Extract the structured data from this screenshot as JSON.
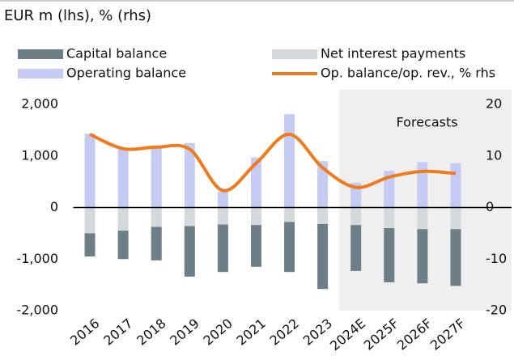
{
  "chart_data": {
    "type": "bar",
    "title": "EUR m (lhs), % (rhs)",
    "annotation": "Forecasts",
    "categories": [
      "2016",
      "2017",
      "2018",
      "2019",
      "2020",
      "2021",
      "2022",
      "2023",
      "2024E",
      "2025F",
      "2026F",
      "2027F"
    ],
    "series": [
      {
        "name": "Net interest payments",
        "color": "#d4d9db",
        "values": [
          -500,
          -450,
          -375,
          -360,
          -330,
          -340,
          -280,
          -320,
          -340,
          -400,
          -420,
          -420
        ]
      },
      {
        "name": "Capital balance",
        "color": "#6d7e86",
        "values": [
          -450,
          -550,
          -650,
          -980,
          -920,
          -810,
          -970,
          -1260,
          -890,
          -1050,
          -1050,
          -1100
        ]
      },
      {
        "name": "Operating balance",
        "color": "#c6cbf3",
        "values": [
          1430,
          1125,
          1200,
          1250,
          310,
          970,
          1810,
          900,
          480,
          710,
          880,
          860
        ]
      },
      {
        "name": "Op. balance/op. rev., % rhs",
        "color": "#f07a1e",
        "type": "line",
        "axis": "y2",
        "values": [
          14.2,
          11.4,
          11.7,
          11.3,
          3.3,
          8.6,
          14.2,
          7.7,
          3.9,
          5.9,
          7.0,
          6.6
        ]
      }
    ],
    "ylim": [
      -2000,
      2000
    ],
    "yticks": [
      {
        "value": -2000,
        "label": "-2,000"
      },
      {
        "value": -1000,
        "label": "-1,000"
      },
      0,
      {
        "value": 1000,
        "label": "1,000"
      },
      {
        "value": 2000,
        "label": "2,000"
      }
    ],
    "y2lim": [
      -20,
      20
    ],
    "y2ticks": [
      -20,
      -10,
      0,
      10,
      20
    ]
  }
}
